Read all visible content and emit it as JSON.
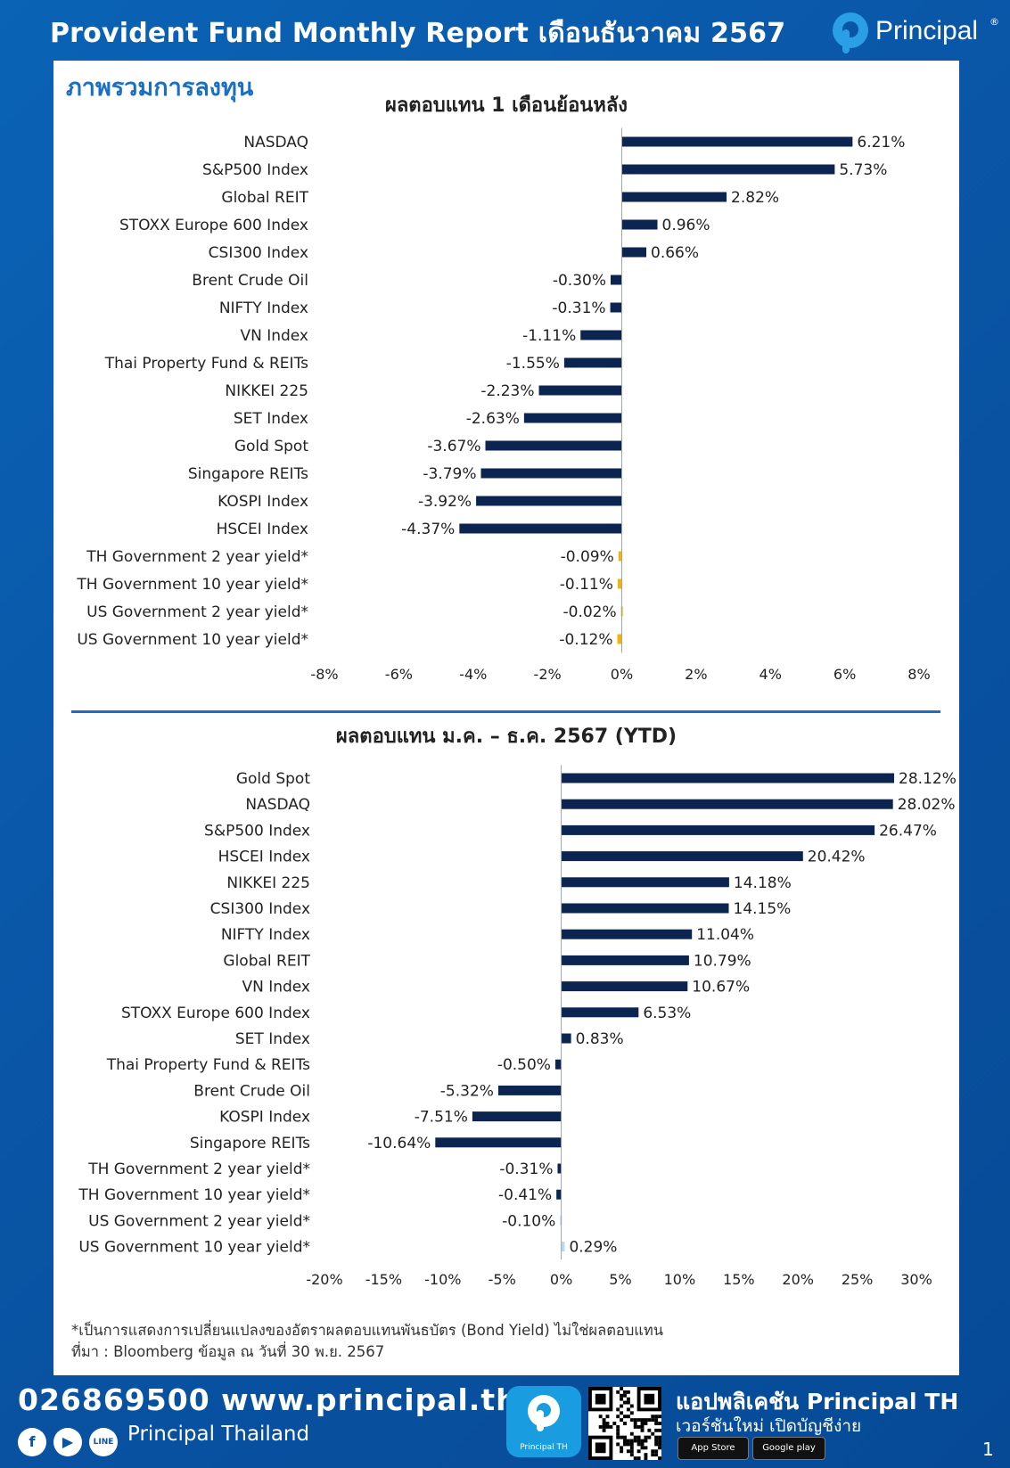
{
  "header": {
    "title": "Provident Fund Monthly Report เดือนธันวาคม 2567",
    "brand": "Principal",
    "reg_mark": "®"
  },
  "section_title": "ภาพรวมการลงทุน",
  "colors": {
    "equity_bar": "#0b2450",
    "bond_bar": "#f4b400",
    "bond_bar_light": "#bcd9f0",
    "accent": "#1a6fc4"
  },
  "chart_data": [
    {
      "type": "bar",
      "orientation": "horizontal",
      "title": "ผลตอบแทน 1 เดือนย้อนหลัง",
      "categories": [
        "NASDAQ",
        "S&P500 Index",
        "Global REIT",
        "STOXX Europe 600 Index",
        "CSI300 Index",
        "Brent Crude Oil",
        "NIFTY Index",
        "VN Index",
        "Thai Property Fund & REITs",
        "NIKKEI 225",
        "SET Index",
        "Gold Spot",
        "Singapore REITs",
        "KOSPI Index",
        "HSCEI Index",
        "TH Government 2 year yield*",
        "TH Government 10 year yield*",
        "US Government 2 year yield*",
        "US Government 10 year yield*"
      ],
      "values": [
        6.21,
        5.73,
        2.82,
        0.96,
        0.66,
        -0.3,
        -0.31,
        -1.11,
        -1.55,
        -2.23,
        -2.63,
        -3.67,
        -3.79,
        -3.92,
        -4.37,
        -0.09,
        -0.11,
        -0.02,
        -0.12
      ],
      "value_labels": [
        "6.21%",
        "5.73%",
        "2.82%",
        "0.96%",
        "0.66%",
        "-0.30%",
        "-0.31%",
        "-1.11%",
        "-1.55%",
        "-2.23%",
        "-2.63%",
        "-3.67%",
        "-3.79%",
        "-3.92%",
        "-4.37%",
        "-0.09%",
        "-0.11%",
        "-0.02%",
        "-0.12%"
      ],
      "bar_colors": [
        "#0b2450",
        "#0b2450",
        "#0b2450",
        "#0b2450",
        "#0b2450",
        "#0b2450",
        "#0b2450",
        "#0b2450",
        "#0b2450",
        "#0b2450",
        "#0b2450",
        "#0b2450",
        "#0b2450",
        "#0b2450",
        "#0b2450",
        "#f4b400",
        "#f4b400",
        "#f4b400",
        "#f4b400"
      ],
      "xlim": [
        -8,
        8
      ],
      "xticks": [
        -8,
        -6,
        -4,
        -2,
        0,
        2,
        4,
        6,
        8
      ],
      "xtick_labels": [
        "-8%",
        "-6%",
        "-4%",
        "-2%",
        "0%",
        "2%",
        "4%",
        "6%",
        "8%"
      ],
      "grid": false
    },
    {
      "type": "bar",
      "orientation": "horizontal",
      "title": "ผลตอบแทน ม.ค. – ธ.ค. 2567 (YTD)",
      "categories": [
        "Gold Spot",
        "NASDAQ",
        "S&P500 Index",
        "HSCEI Index",
        "NIKKEI 225",
        "CSI300 Index",
        "NIFTY Index",
        "Global REIT",
        "VN Index",
        "STOXX Europe 600 Index",
        "SET Index",
        "Thai Property Fund & REITs",
        "Brent Crude Oil",
        "KOSPI Index",
        "Singapore REITs",
        "TH Government 2 year yield*",
        "TH Government 10 year yield*",
        "US Government 2 year yield*",
        "US Government 10 year yield*"
      ],
      "values": [
        28.12,
        28.02,
        26.47,
        20.42,
        14.18,
        14.15,
        11.04,
        10.79,
        10.67,
        6.53,
        0.83,
        -0.5,
        -5.32,
        -7.51,
        -10.64,
        -0.31,
        -0.41,
        -0.1,
        0.29
      ],
      "value_labels": [
        "28.12%",
        "28.02%",
        "26.47%",
        "20.42%",
        "14.18%",
        "14.15%",
        "11.04%",
        "10.79%",
        "10.67%",
        "6.53%",
        "0.83%",
        "-0.50%",
        "-5.32%",
        "-7.51%",
        "-10.64%",
        "-0.31%",
        "-0.41%",
        "-0.10%",
        "0.29%"
      ],
      "bar_colors": [
        "#0b2450",
        "#0b2450",
        "#0b2450",
        "#0b2450",
        "#0b2450",
        "#0b2450",
        "#0b2450",
        "#0b2450",
        "#0b2450",
        "#0b2450",
        "#0b2450",
        "#0b2450",
        "#0b2450",
        "#0b2450",
        "#0b2450",
        "#0b2450",
        "#0b2450",
        "#bcd9f0",
        "#bcd9f0"
      ],
      "xlim": [
        -20,
        30
      ],
      "xticks": [
        -20,
        -15,
        -10,
        -5,
        0,
        5,
        10,
        15,
        20,
        25,
        30
      ],
      "xtick_labels": [
        "-20%",
        "-15%",
        "-10%",
        "-5%",
        "0%",
        "5%",
        "10%",
        "15%",
        "20%",
        "25%",
        "30%"
      ],
      "grid": false
    }
  ],
  "notes": {
    "footnote": "*เป็นการแสดงการเปลี่ยนแปลงของอัตราผลตอบแทนพันธบัตร (Bond Yield) ไม่ใช่ผลตอบแทน",
    "source": "ที่มา : Bloomberg ข้อมูล ณ วันที่ 30 พ.ย. 2567"
  },
  "footer": {
    "contact": "026869500 www.principal.th",
    "social_name": "Principal Thailand",
    "social_icons": [
      "facebook-icon",
      "youtube-icon",
      "line-icon"
    ],
    "line_label": "LINE",
    "app_icon_label": "Principal TH",
    "app_title": "แอปพลิเคชัน Principal TH",
    "app_subtitle": "เวอร์ชันใหม่ เปิดบัญชีง่าย",
    "app_store": "App Store",
    "google_play": "Google play",
    "page_number": "1"
  }
}
